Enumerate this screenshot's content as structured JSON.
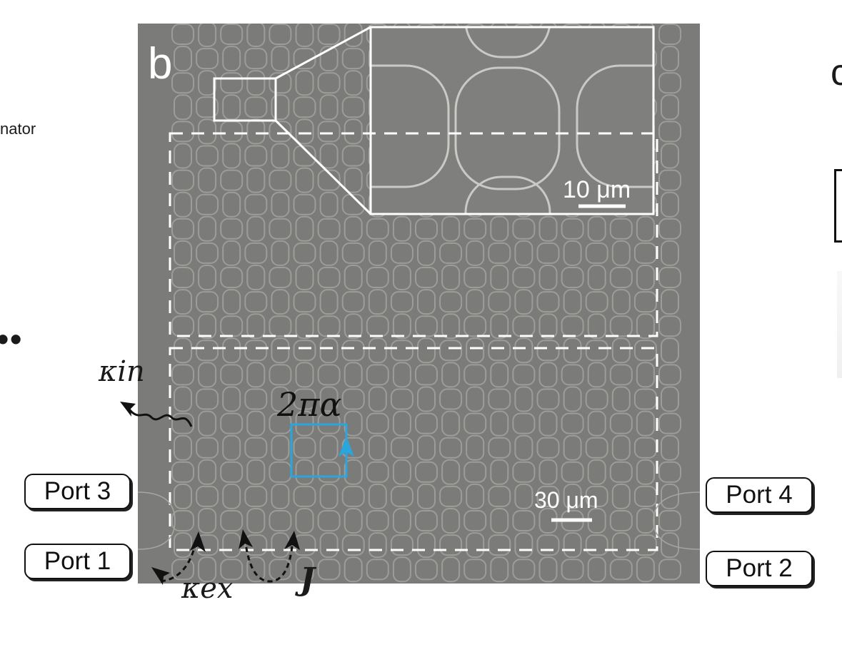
{
  "panel": {
    "label": "b"
  },
  "left_fragment": {
    "text": "nator",
    "dots": "••"
  },
  "right_fragment": {
    "label": "c"
  },
  "inset": {
    "scale_label": "10 μm"
  },
  "main": {
    "scale_label": "30 μm",
    "flux_label": "2πα"
  },
  "couplings": {
    "kappa_in": "κin",
    "kappa_ex": "κex",
    "J": "J"
  },
  "ports": [
    "Port 3",
    "Port 1",
    "Port 4",
    "Port 2"
  ],
  "colors": {
    "sem_bg": "#7b7c79",
    "ring": "#9c9d99",
    "dash": "#ffffff",
    "plaquette": "#2aa5dd"
  }
}
